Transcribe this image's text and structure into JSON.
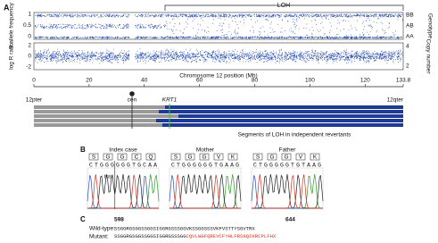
{
  "panel_a": {
    "label": "A",
    "loh": "LOH",
    "y_left_top": "B allele frequency",
    "y_left_bottom": "log R ratio",
    "y_right_top": "Genotype",
    "y_right_bottom": "Copy number",
    "genotypes": [
      "BB",
      "AB",
      "AA"
    ],
    "baf_ticks": [
      "1",
      "0.5",
      "0"
    ],
    "logr_ticks": [
      "2",
      "0",
      "-2"
    ],
    "cn_ticks": [
      "4",
      "2"
    ],
    "x_title": "Chromosome 12 position (Mb)",
    "xlim": [
      0,
      133.8
    ],
    "xticks": [
      0,
      20,
      40,
      60,
      80,
      100,
      120,
      133.8
    ],
    "pter": "12pter",
    "cen": "cen",
    "gene": "KRT1",
    "qter": "12qter",
    "segments_caption": "Segments of LOH in independent revertants"
  },
  "panel_b": {
    "label": "B",
    "insertion": "ins",
    "traces": [
      {
        "title": "Index case",
        "residues": [
          "S",
          "G",
          "G",
          "C",
          "Q"
        ],
        "bases": "CTGGGGGGTGCAA"
      },
      {
        "title": "Mother",
        "residues": [
          "S",
          "G",
          "G",
          "V",
          "K"
        ],
        "bases": "CTGGGGGGTGAAG"
      },
      {
        "title": "Father",
        "residues": [
          "S",
          "G",
          "G",
          "V",
          "K"
        ],
        "bases": "CTGGGGGTGTAAG"
      }
    ]
  },
  "panel_c": {
    "label": "C",
    "start": "598",
    "end": "644",
    "wt_label": "Wild-type:",
    "wt_seq": "SSGGRGSGGSSGGSIGGRGSSSGGVKSSGGSSSVKFVSTTYSGVTRX",
    "mut_label": "Mutant:",
    "mut_seq_same": "SSGGRGSGGSSGGSIGGRGSSSGG",
    "mut_seq_changed": "CQVLWGFQREVCFYHLFRSNQIKRCPLFHX"
  }
}
